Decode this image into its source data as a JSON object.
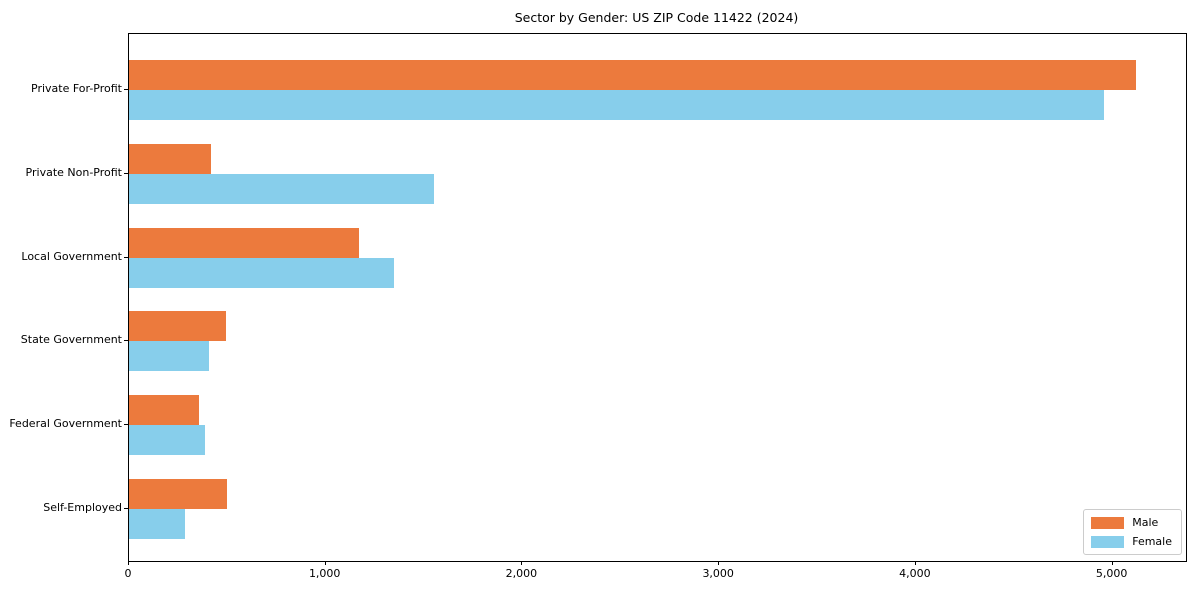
{
  "title": "Sector by Gender: US ZIP Code 11422 (2024)",
  "colors": {
    "male": "#ec7a3d",
    "female": "#87ceeb",
    "axis": "#000000",
    "legend_border": "#cccccc",
    "background": "#ffffff"
  },
  "chart_data": {
    "type": "bar",
    "orientation": "horizontal",
    "title": "Sector by Gender: US ZIP Code 11422 (2024)",
    "categories": [
      "Private For-Profit",
      "Private Non-Profit",
      "Local Government",
      "State Government",
      "Federal Government",
      "Self-Employed"
    ],
    "series": [
      {
        "name": "Male",
        "color": "#ec7a3d",
        "values": [
          5117,
          417,
          1169,
          491,
          356,
          496
        ]
      },
      {
        "name": "Female",
        "color": "#87ceeb",
        "values": [
          4954,
          1550,
          1347,
          406,
          385,
          285
        ]
      }
    ],
    "xlabel": "",
    "ylabel": "",
    "xticks": [
      0,
      1000,
      2000,
      3000,
      4000,
      5000
    ],
    "xtick_labels": [
      "0",
      "1,000",
      "2,000",
      "3,000",
      "4,000",
      "5,000"
    ],
    "xlim": [
      0,
      5373
    ],
    "grid": false,
    "legend_position": "lower right",
    "legend_entries": [
      "Male",
      "Female"
    ]
  }
}
